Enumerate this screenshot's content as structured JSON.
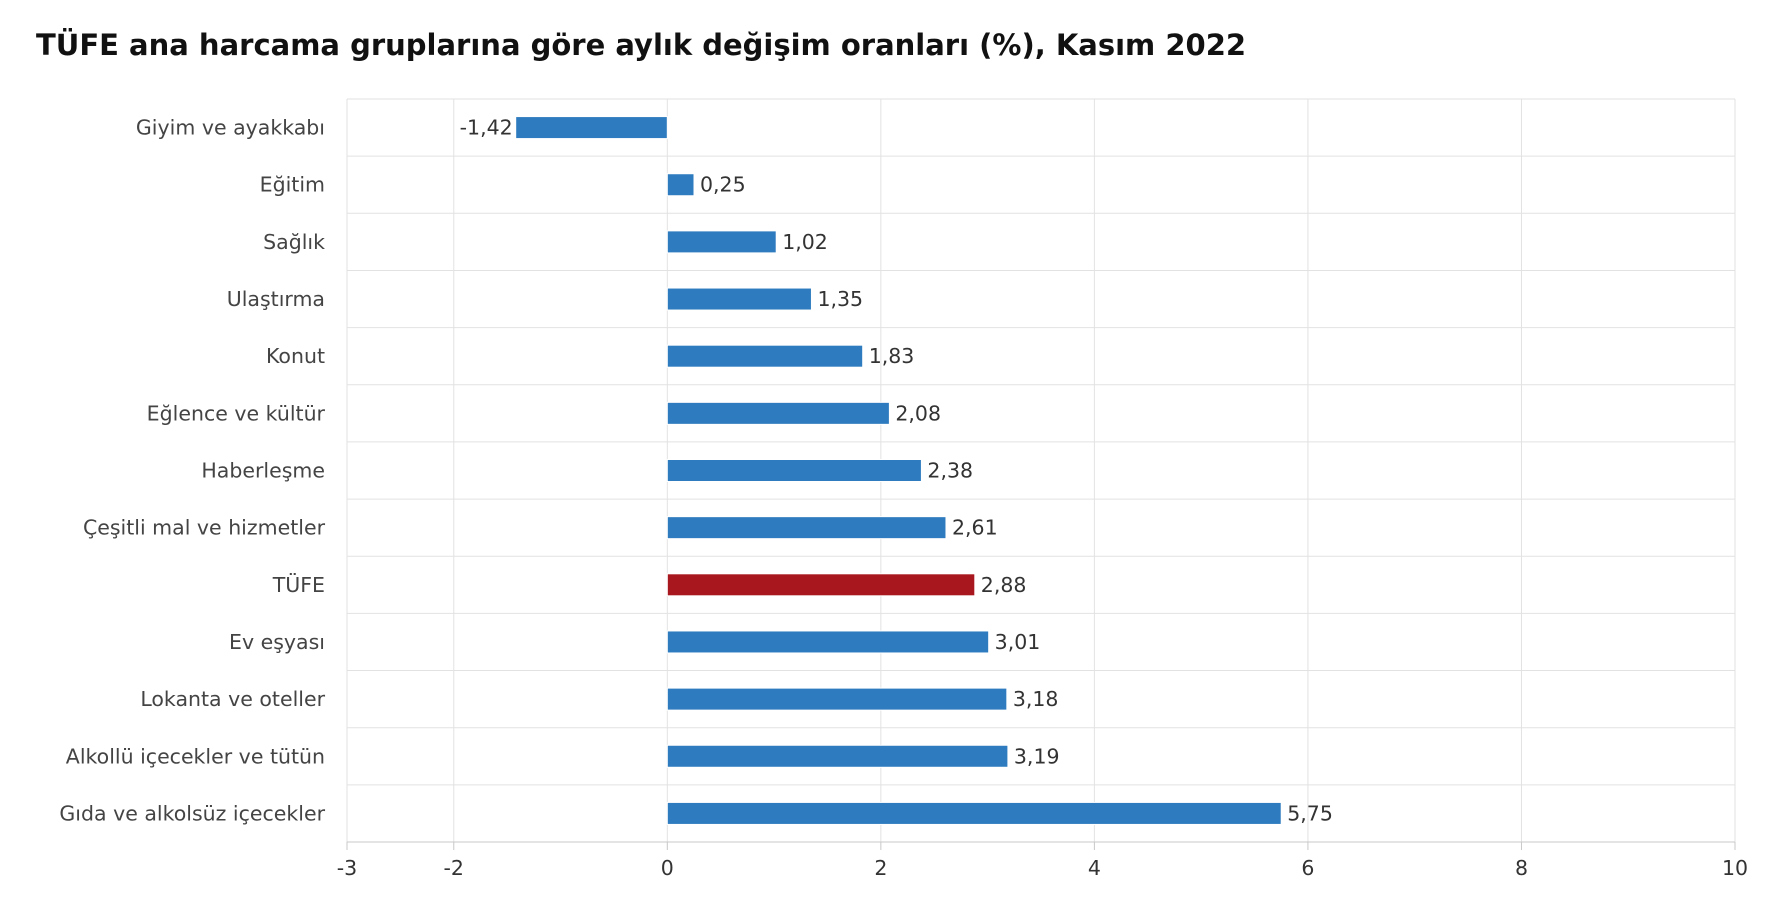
{
  "chart_data": {
    "type": "bar",
    "orientation": "horizontal",
    "title": "TÜFE ana harcama gruplarına göre aylık değişim oranları (%), Kasım 2022",
    "categories": [
      "Giyim ve ayakkabı",
      "Eğitim",
      "Sağlık",
      "Ulaştırma",
      "Konut",
      "Eğlence ve kültür",
      "Haberleşme",
      "Çeşitli mal ve hizmetler",
      "TÜFE",
      "Ev eşyası",
      "Lokanta ve oteller",
      "Alkollü içecekler ve tütün",
      "Gıda ve alkolsüz içecekler"
    ],
    "values": [
      -1.42,
      0.25,
      1.02,
      1.35,
      1.83,
      2.08,
      2.38,
      2.61,
      2.88,
      3.01,
      3.18,
      3.19,
      5.75
    ],
    "value_labels": [
      "-1,42",
      "0,25",
      "1,02",
      "1,35",
      "1,83",
      "2,08",
      "2,38",
      "2,61",
      "2,88",
      "3,01",
      "3,18",
      "3,19",
      "5,75"
    ],
    "xlim": [
      -3,
      10
    ],
    "xticks": [
      -3,
      -2,
      0,
      2,
      4,
      6,
      8,
      10
    ],
    "xtick_labels": [
      "-3",
      "-2",
      "0",
      "2",
      "4",
      "6",
      "8",
      "10"
    ],
    "grid": true,
    "legend": "none",
    "colors": {
      "bar": "#2e7bbf",
      "highlight": "#a8171d",
      "grid": "#e2e2e2"
    },
    "highlight_category": "TÜFE"
  }
}
